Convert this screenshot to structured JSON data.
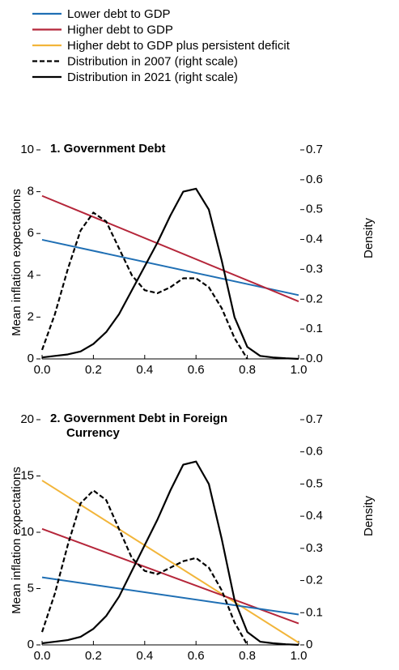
{
  "legend": [
    {
      "name": "Lower debt to GDP",
      "color": "#1f6fb4",
      "dash": false
    },
    {
      "name": "Higher debt to GDP",
      "color": "#b5263a",
      "dash": false
    },
    {
      "name": "Higher debt to GDP plus persistent deficit",
      "color": "#f2b53a",
      "dash": false
    },
    {
      "name": "Distribution in 2007 (right scale)",
      "color": "#000000",
      "dash": true
    },
    {
      "name": "Distribution in 2021 (right scale)",
      "color": "#000000",
      "dash": false
    }
  ],
  "chart_data": [
    {
      "type": "line",
      "title": "1. Government Debt",
      "ylabel": "Mean inflation expectations",
      "y2label": "Density",
      "xlim": [
        0,
        1
      ],
      "xticks": [
        {
          "value": 0,
          "label": "0.0"
        },
        0.2,
        0.4,
        0.6,
        0.8,
        {
          "value": 1,
          "label": "1.0"
        }
      ],
      "ylim": [
        0,
        10
      ],
      "yticks": [
        0,
        2,
        4,
        6,
        8,
        10
      ],
      "y2lim": [
        0,
        0.7
      ],
      "y2ticks": [
        {
          "value": 0,
          "label": "0.0"
        },
        0.1,
        0.2,
        0.3,
        0.4,
        0.5,
        0.6,
        0.7
      ],
      "series": [
        {
          "color": "#1f6fb4",
          "dash": false,
          "x": [
            0,
            1
          ],
          "values": [
            5.7,
            3.05
          ]
        },
        {
          "color": "#b5263a",
          "dash": false,
          "x": [
            0,
            1
          ],
          "values": [
            7.8,
            2.75
          ]
        },
        {
          "color": "#000000",
          "dash": true,
          "axis": "y2",
          "x": [
            0,
            0.05,
            0.1,
            0.15,
            0.2,
            0.25,
            0.3,
            0.35,
            0.4,
            0.45,
            0.5,
            0.55,
            0.6,
            0.65,
            0.7,
            0.75,
            0.8
          ],
          "values": [
            0.03,
            0.15,
            0.3,
            0.43,
            0.49,
            0.46,
            0.37,
            0.28,
            0.23,
            0.22,
            0.24,
            0.27,
            0.27,
            0.24,
            0.17,
            0.07,
            0.0
          ]
        },
        {
          "color": "#000000",
          "dash": false,
          "axis": "y2",
          "x": [
            0,
            0.05,
            0.1,
            0.15,
            0.2,
            0.25,
            0.3,
            0.35,
            0.4,
            0.45,
            0.5,
            0.55,
            0.6,
            0.65,
            0.7,
            0.75,
            0.8,
            0.85,
            0.9,
            0.95,
            1
          ],
          "values": [
            0.005,
            0.01,
            0.015,
            0.025,
            0.05,
            0.09,
            0.15,
            0.23,
            0.31,
            0.39,
            0.48,
            0.56,
            0.57,
            0.5,
            0.33,
            0.14,
            0.04,
            0.01,
            0.005,
            0.002,
            0.0
          ]
        }
      ]
    },
    {
      "type": "line",
      "title": "2. Government Debt in Foreign Currency",
      "ylabel": "Mean inflation expectations",
      "y2label": "Density",
      "xlim": [
        0,
        1
      ],
      "xticks": [
        {
          "value": 0,
          "label": "0.0"
        },
        0.2,
        0.4,
        0.6,
        0.8,
        {
          "value": 1,
          "label": "1.0"
        }
      ],
      "ylim": [
        0,
        20
      ],
      "yticks": [
        0,
        5,
        10,
        15,
        20
      ],
      "y2lim": [
        0,
        0.7
      ],
      "y2ticks": [
        0,
        0.1,
        0.2,
        0.3,
        0.4,
        0.5,
        0.6,
        0.7
      ],
      "series": [
        {
          "color": "#f2b53a",
          "dash": false,
          "x": [
            0,
            1
          ],
          "values": [
            14.6,
            0.2
          ]
        },
        {
          "color": "#b5263a",
          "dash": false,
          "x": [
            0,
            1
          ],
          "values": [
            10.3,
            1.9
          ]
        },
        {
          "color": "#1f6fb4",
          "dash": false,
          "x": [
            0,
            1
          ],
          "values": [
            6.0,
            2.7
          ]
        },
        {
          "color": "#000000",
          "dash": true,
          "axis": "y2",
          "x": [
            0,
            0.05,
            0.1,
            0.15,
            0.2,
            0.25,
            0.3,
            0.35,
            0.4,
            0.45,
            0.5,
            0.55,
            0.6,
            0.65,
            0.7,
            0.75,
            0.8
          ],
          "values": [
            0.04,
            0.16,
            0.31,
            0.44,
            0.48,
            0.45,
            0.36,
            0.27,
            0.23,
            0.22,
            0.24,
            0.26,
            0.27,
            0.24,
            0.17,
            0.07,
            0.0
          ]
        },
        {
          "color": "#000000",
          "dash": false,
          "axis": "y2",
          "x": [
            0,
            0.05,
            0.1,
            0.15,
            0.2,
            0.25,
            0.3,
            0.35,
            0.4,
            0.45,
            0.5,
            0.55,
            0.6,
            0.65,
            0.7,
            0.75,
            0.8,
            0.85,
            0.9,
            0.95,
            1
          ],
          "values": [
            0.005,
            0.01,
            0.015,
            0.025,
            0.05,
            0.09,
            0.15,
            0.23,
            0.31,
            0.39,
            0.48,
            0.56,
            0.57,
            0.5,
            0.33,
            0.14,
            0.04,
            0.01,
            0.005,
            0.002,
            0.0
          ]
        }
      ]
    }
  ]
}
